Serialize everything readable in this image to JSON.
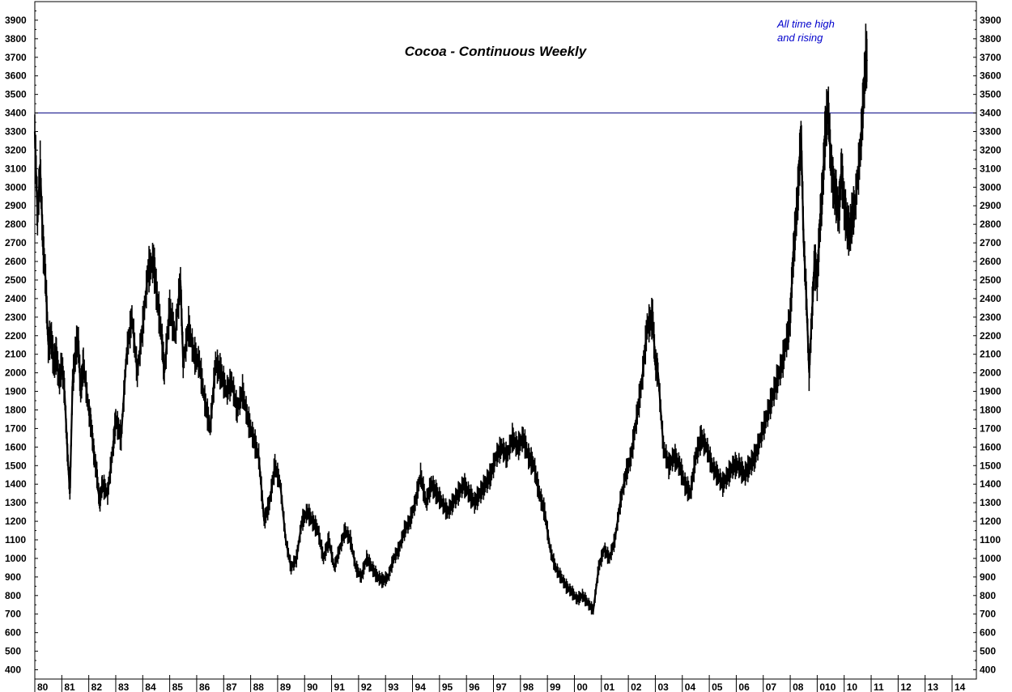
{
  "chart_data": {
    "type": "line",
    "title": "Cocoa - Continuous Weekly",
    "xlabel": "",
    "ylabel": "",
    "ylim": [
      350,
      4000
    ],
    "xlim": [
      1980,
      2014.9
    ],
    "y_ticks": [
      400,
      500,
      600,
      700,
      800,
      900,
      1000,
      1100,
      1200,
      1300,
      1400,
      1500,
      1600,
      1700,
      1800,
      1900,
      2000,
      2100,
      2200,
      2300,
      2400,
      2500,
      2600,
      2700,
      2800,
      2900,
      3000,
      3100,
      3200,
      3300,
      3400,
      3500,
      3600,
      3700,
      3800,
      3900
    ],
    "x_ticks": [
      {
        "x": 1980,
        "label": "80"
      },
      {
        "x": 1981,
        "label": "81"
      },
      {
        "x": 1982,
        "label": "82"
      },
      {
        "x": 1983,
        "label": "83"
      },
      {
        "x": 1984,
        "label": "84"
      },
      {
        "x": 1985,
        "label": "85"
      },
      {
        "x": 1986,
        "label": "86"
      },
      {
        "x": 1987,
        "label": "87"
      },
      {
        "x": 1988,
        "label": "88"
      },
      {
        "x": 1989,
        "label": "89"
      },
      {
        "x": 1990,
        "label": "90"
      },
      {
        "x": 1991,
        "label": "91"
      },
      {
        "x": 1992,
        "label": "92"
      },
      {
        "x": 1993,
        "label": "93"
      },
      {
        "x": 1994,
        "label": "94"
      },
      {
        "x": 1995,
        "label": "95"
      },
      {
        "x": 1996,
        "label": "96"
      },
      {
        "x": 1997,
        "label": "97"
      },
      {
        "x": 1998,
        "label": "98"
      },
      {
        "x": 1999,
        "label": "99"
      },
      {
        "x": 2000,
        "label": "00"
      },
      {
        "x": 2001,
        "label": "01"
      },
      {
        "x": 2002,
        "label": "02"
      },
      {
        "x": 2003,
        "label": "03"
      },
      {
        "x": 2004,
        "label": "04"
      },
      {
        "x": 2005,
        "label": "05"
      },
      {
        "x": 2006,
        "label": "06"
      },
      {
        "x": 2007,
        "label": "07"
      },
      {
        "x": 2008,
        "label": "08"
      },
      {
        "x": 2009,
        "label": "010"
      },
      {
        "x": 2010,
        "label": "10"
      },
      {
        "x": 2011,
        "label": "11"
      },
      {
        "x": 2012,
        "label": "12"
      },
      {
        "x": 2013,
        "label": "13"
      },
      {
        "x": 2014,
        "label": "14"
      }
    ],
    "reference_line": {
      "y": 3400,
      "color": "#000080"
    },
    "annotation": {
      "lines": [
        "All time high",
        "and rising"
      ],
      "color": "#0000cc",
      "x": 2008.6,
      "y": 3850
    },
    "series": [
      {
        "color": "#000000",
        "points": [
          [
            1980.0,
            3300
          ],
          [
            1980.1,
            2850
          ],
          [
            1980.2,
            3100
          ],
          [
            1980.3,
            2700
          ],
          [
            1980.4,
            2500
          ],
          [
            1980.5,
            2150
          ],
          [
            1980.6,
            2200
          ],
          [
            1980.7,
            2050
          ],
          [
            1980.8,
            2100
          ],
          [
            1980.9,
            1950
          ],
          [
            1981.0,
            2050
          ],
          [
            1981.1,
            1900
          ],
          [
            1981.2,
            1600
          ],
          [
            1981.3,
            1350
          ],
          [
            1981.4,
            1950
          ],
          [
            1981.5,
            2100
          ],
          [
            1981.6,
            2200
          ],
          [
            1981.7,
            1900
          ],
          [
            1981.8,
            2050
          ],
          [
            1982.0,
            1800
          ],
          [
            1982.1,
            1700
          ],
          [
            1982.2,
            1550
          ],
          [
            1982.3,
            1450
          ],
          [
            1982.4,
            1300
          ],
          [
            1982.5,
            1400
          ],
          [
            1982.7,
            1350
          ],
          [
            1982.9,
            1600
          ],
          [
            1983.0,
            1750
          ],
          [
            1983.2,
            1650
          ],
          [
            1983.4,
            2100
          ],
          [
            1983.6,
            2300
          ],
          [
            1983.8,
            2000
          ],
          [
            1984.0,
            2250
          ],
          [
            1984.2,
            2550
          ],
          [
            1984.4,
            2600
          ],
          [
            1984.5,
            2450
          ],
          [
            1984.7,
            2200
          ],
          [
            1984.8,
            2000
          ],
          [
            1985.0,
            2350
          ],
          [
            1985.2,
            2200
          ],
          [
            1985.4,
            2500
          ],
          [
            1985.5,
            2050
          ],
          [
            1985.7,
            2250
          ],
          [
            1985.9,
            2100
          ],
          [
            1986.1,
            2050
          ],
          [
            1986.3,
            1850
          ],
          [
            1986.5,
            1700
          ],
          [
            1986.7,
            2050
          ],
          [
            1986.9,
            2000
          ],
          [
            1987.1,
            1900
          ],
          [
            1987.3,
            1950
          ],
          [
            1987.5,
            1800
          ],
          [
            1987.7,
            1900
          ],
          [
            1987.9,
            1750
          ],
          [
            1988.1,
            1650
          ],
          [
            1988.3,
            1550
          ],
          [
            1988.5,
            1200
          ],
          [
            1988.7,
            1300
          ],
          [
            1988.9,
            1500
          ],
          [
            1989.1,
            1400
          ],
          [
            1989.3,
            1100
          ],
          [
            1989.5,
            950
          ],
          [
            1989.7,
            1000
          ],
          [
            1989.9,
            1200
          ],
          [
            1990.1,
            1250
          ],
          [
            1990.3,
            1200
          ],
          [
            1990.5,
            1150
          ],
          [
            1990.7,
            1000
          ],
          [
            1990.9,
            1100
          ],
          [
            1991.1,
            950
          ],
          [
            1991.3,
            1050
          ],
          [
            1991.5,
            1150
          ],
          [
            1991.7,
            1100
          ],
          [
            1991.9,
            950
          ],
          [
            1992.1,
            900
          ],
          [
            1992.3,
            1000
          ],
          [
            1992.5,
            950
          ],
          [
            1992.7,
            900
          ],
          [
            1992.9,
            880
          ],
          [
            1993.1,
            900
          ],
          [
            1993.3,
            1000
          ],
          [
            1993.5,
            1050
          ],
          [
            1993.7,
            1150
          ],
          [
            1993.9,
            1200
          ],
          [
            1994.1,
            1300
          ],
          [
            1994.3,
            1450
          ],
          [
            1994.5,
            1300
          ],
          [
            1994.7,
            1400
          ],
          [
            1994.9,
            1350
          ],
          [
            1995.1,
            1300
          ],
          [
            1995.3,
            1250
          ],
          [
            1995.5,
            1300
          ],
          [
            1995.7,
            1350
          ],
          [
            1995.9,
            1400
          ],
          [
            1996.1,
            1350
          ],
          [
            1996.3,
            1300
          ],
          [
            1996.5,
            1350
          ],
          [
            1996.7,
            1400
          ],
          [
            1996.9,
            1450
          ],
          [
            1997.1,
            1550
          ],
          [
            1997.3,
            1600
          ],
          [
            1997.5,
            1550
          ],
          [
            1997.7,
            1650
          ],
          [
            1997.9,
            1600
          ],
          [
            1998.1,
            1650
          ],
          [
            1998.3,
            1550
          ],
          [
            1998.5,
            1500
          ],
          [
            1998.7,
            1350
          ],
          [
            1998.9,
            1250
          ],
          [
            1999.1,
            1050
          ],
          [
            1999.3,
            950
          ],
          [
            1999.5,
            900
          ],
          [
            1999.7,
            850
          ],
          [
            1999.9,
            820
          ],
          [
            2000.1,
            780
          ],
          [
            2000.3,
            800
          ],
          [
            2000.5,
            760
          ],
          [
            2000.7,
            720
          ],
          [
            2000.9,
            950
          ],
          [
            2001.1,
            1050
          ],
          [
            2001.3,
            1000
          ],
          [
            2001.5,
            1100
          ],
          [
            2001.7,
            1300
          ],
          [
            2001.9,
            1450
          ],
          [
            2002.1,
            1550
          ],
          [
            2002.3,
            1750
          ],
          [
            2002.5,
            1950
          ],
          [
            2002.7,
            2250
          ],
          [
            2002.9,
            2300
          ],
          [
            2003.0,
            2050
          ],
          [
            2003.1,
            2000
          ],
          [
            2003.3,
            1600
          ],
          [
            2003.5,
            1500
          ],
          [
            2003.7,
            1550
          ],
          [
            2003.9,
            1500
          ],
          [
            2004.1,
            1400
          ],
          [
            2004.3,
            1350
          ],
          [
            2004.5,
            1550
          ],
          [
            2004.7,
            1650
          ],
          [
            2004.9,
            1600
          ],
          [
            2005.1,
            1500
          ],
          [
            2005.3,
            1450
          ],
          [
            2005.5,
            1400
          ],
          [
            2005.7,
            1450
          ],
          [
            2005.9,
            1500
          ],
          [
            2006.1,
            1500
          ],
          [
            2006.3,
            1450
          ],
          [
            2006.5,
            1500
          ],
          [
            2006.7,
            1550
          ],
          [
            2006.9,
            1650
          ],
          [
            2007.1,
            1750
          ],
          [
            2007.3,
            1850
          ],
          [
            2007.5,
            1950
          ],
          [
            2007.7,
            2050
          ],
          [
            2007.9,
            2200
          ],
          [
            2008.0,
            2300
          ],
          [
            2008.1,
            2600
          ],
          [
            2008.2,
            2800
          ],
          [
            2008.3,
            3000
          ],
          [
            2008.4,
            3300
          ],
          [
            2008.5,
            2700
          ],
          [
            2008.6,
            2400
          ],
          [
            2008.7,
            2000
          ],
          [
            2008.8,
            2300
          ],
          [
            2008.9,
            2600
          ],
          [
            2009.0,
            2500
          ],
          [
            2009.1,
            2800
          ],
          [
            2009.2,
            3000
          ],
          [
            2009.3,
            3300
          ],
          [
            2009.4,
            3450
          ],
          [
            2009.5,
            3150
          ],
          [
            2009.6,
            3000
          ],
          [
            2009.7,
            2950
          ],
          [
            2009.8,
            2850
          ],
          [
            2009.9,
            3100
          ],
          [
            2010.0,
            2900
          ],
          [
            2010.1,
            2800
          ],
          [
            2010.2,
            2750
          ],
          [
            2010.3,
            2850
          ],
          [
            2010.4,
            2900
          ],
          [
            2010.6,
            3200
          ],
          [
            2010.7,
            3450
          ],
          [
            2010.8,
            3700
          ],
          [
            2010.85,
            3680
          ]
        ]
      }
    ]
  }
}
